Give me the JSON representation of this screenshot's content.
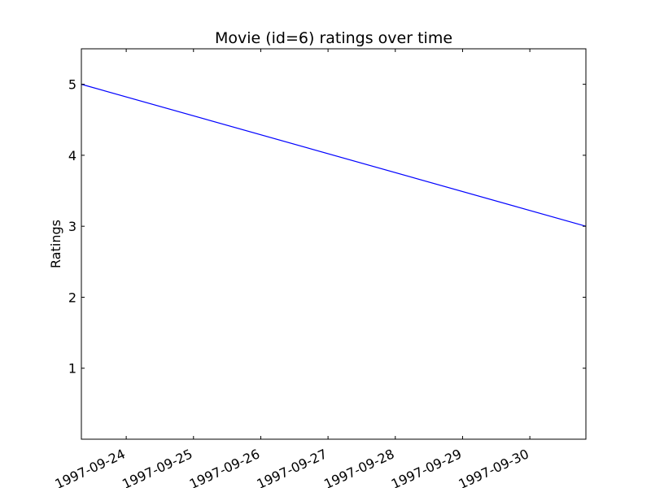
{
  "chart_data": {
    "type": "line",
    "title": "Movie (id=6) ratings over time",
    "xlabel": "",
    "ylabel": "Ratings",
    "x_ticks": [
      "1997-09-24",
      "1997-09-25",
      "1997-09-26",
      "1997-09-27",
      "1997-09-28",
      "1997-09-29",
      "1997-09-30"
    ],
    "y_ticks": [
      1,
      2,
      3,
      4,
      5
    ],
    "xlim": [
      "1997-09-23 08:00",
      "1997-09-30 20:00"
    ],
    "ylim": [
      0,
      5.5
    ],
    "grid": false,
    "series": [
      {
        "color": "#0000ff",
        "x": [
          "1997-09-23 08:00",
          "1997-09-30 20:00"
        ],
        "y": [
          5,
          3
        ]
      }
    ]
  }
}
